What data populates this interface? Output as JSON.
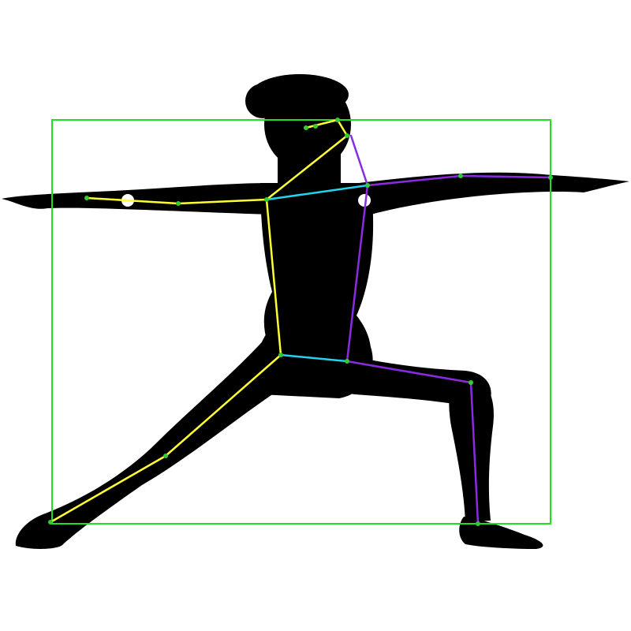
{
  "colors": {
    "background": "#ffffff",
    "silhouette": "#000000",
    "bounding_box": "#22dd22",
    "left_side_limbs": "#ffff33",
    "right_side_limbs": "#8a2be2",
    "cross_links": "#22d3ee",
    "keypoint": "#33cc33",
    "joint_marker": "#ffffff"
  },
  "pose": {
    "name": "warrior-ii-pose",
    "keypoints": [
      {
        "id": "nose",
        "side": "center"
      },
      {
        "id": "left-eye",
        "side": "left"
      },
      {
        "id": "right-eye",
        "side": "right"
      },
      {
        "id": "left-ear",
        "side": "left"
      },
      {
        "id": "right-ear",
        "side": "right"
      },
      {
        "id": "left-shoulder",
        "side": "left"
      },
      {
        "id": "right-shoulder",
        "side": "right"
      },
      {
        "id": "left-elbow",
        "side": "left"
      },
      {
        "id": "right-elbow",
        "side": "right"
      },
      {
        "id": "left-wrist",
        "side": "left"
      },
      {
        "id": "right-wrist",
        "side": "right"
      },
      {
        "id": "left-hip",
        "side": "left"
      },
      {
        "id": "right-hip",
        "side": "right"
      },
      {
        "id": "left-knee",
        "side": "left"
      },
      {
        "id": "right-knee",
        "side": "right"
      },
      {
        "id": "left-ankle",
        "side": "left"
      },
      {
        "id": "right-ankle",
        "side": "right"
      }
    ]
  }
}
